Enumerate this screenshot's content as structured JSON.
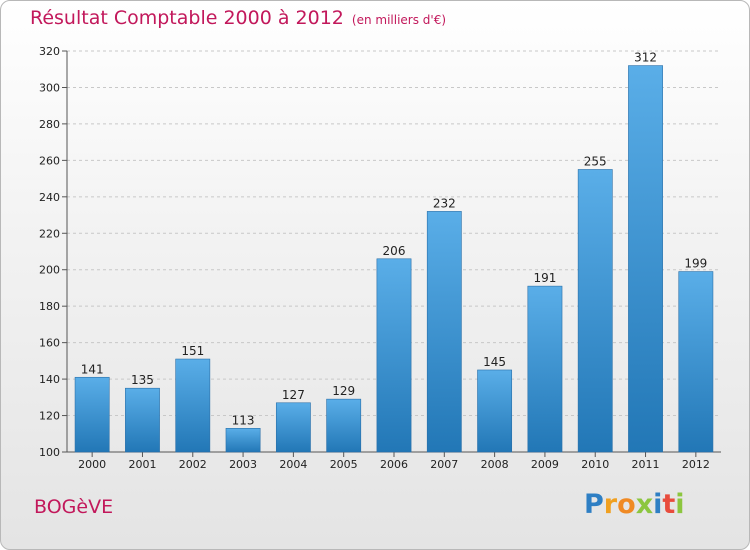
{
  "header": {
    "title": "Résultat Comptable 2000 à 2012",
    "subtitle": "(en milliers d'€)"
  },
  "footer": {
    "commune": "BOGèVE",
    "logo_letters": [
      "P",
      "r",
      "o",
      "x",
      "i",
      "t",
      "i"
    ],
    "logo_colors": [
      "#2e7fc4",
      "#f0a020",
      "#f08a24",
      "#8cc63f",
      "#2e7fc4",
      "#e84c3d",
      "#8cc63f"
    ]
  },
  "colors": {
    "bar_top": "#5aaee8",
    "bar_bottom": "#2277b6",
    "title": "#c2185b"
  },
  "chart_data": {
    "type": "bar",
    "title": "Résultat Comptable 2000 à 2012",
    "xlabel": "",
    "ylabel": "",
    "categories": [
      "2000",
      "2001",
      "2002",
      "2003",
      "2004",
      "2005",
      "2006",
      "2007",
      "2008",
      "2009",
      "2010",
      "2011",
      "2012"
    ],
    "values": [
      141,
      135,
      151,
      113,
      127,
      129,
      206,
      232,
      145,
      191,
      255,
      312,
      199
    ],
    "ylim": [
      100,
      320
    ],
    "yticks": [
      100,
      120,
      140,
      160,
      180,
      200,
      220,
      240,
      260,
      280,
      300,
      320
    ],
    "grid": true
  }
}
